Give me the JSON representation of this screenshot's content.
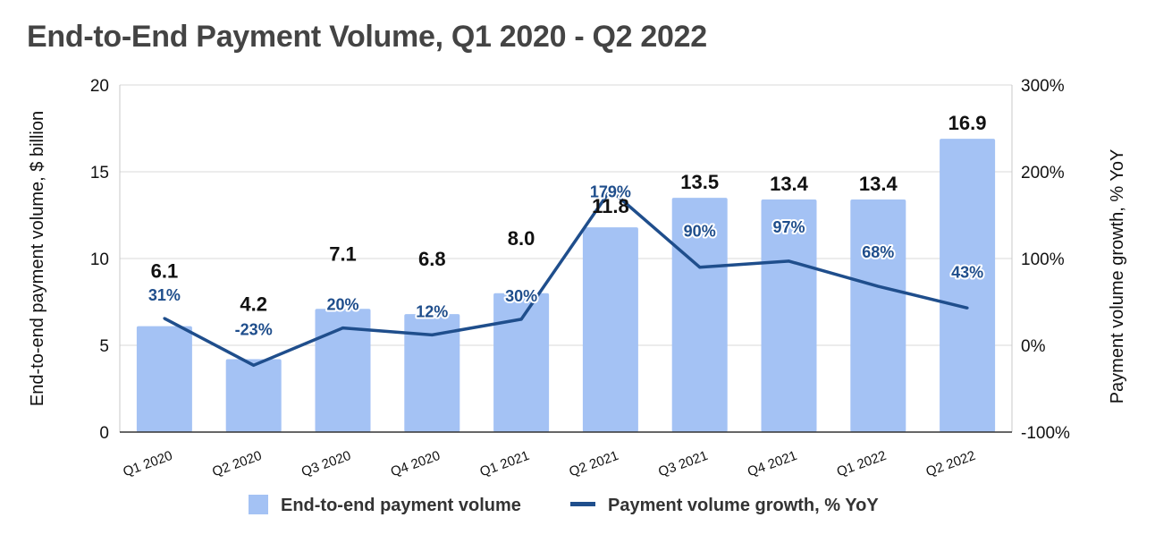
{
  "colors": {
    "bar": "#a4c2f4",
    "line": "#1f4e8c",
    "grid": "#d9d9d9",
    "title": "#444444"
  },
  "chart_data": {
    "type": "bar+line",
    "title": "End-to-End Payment Volume, Q1 2020 - Q2 2022",
    "categories": [
      "Q1 2020",
      "Q2 2020",
      "Q3 2020",
      "Q4 2020",
      "Q1 2021",
      "Q2 2021",
      "Q3 2021",
      "Q4 2021",
      "Q1 2022",
      "Q2 2022"
    ],
    "series": [
      {
        "name": "End-to-end payment volume",
        "type": "bar",
        "axis": "left",
        "values": [
          6.1,
          4.2,
          7.1,
          6.8,
          8.0,
          11.8,
          13.5,
          13.4,
          13.4,
          16.9
        ],
        "labels": [
          "6.1",
          "4.2",
          "7.1",
          "6.8",
          "8.0",
          "11.8",
          "13.5",
          "13.4",
          "13.4",
          "16.9"
        ]
      },
      {
        "name": "Payment volume growth, % YoY",
        "type": "line",
        "axis": "right",
        "values": [
          31,
          -23,
          20,
          12,
          30,
          179,
          90,
          97,
          68,
          43
        ],
        "labels": [
          "31%",
          "-23%",
          "20%",
          "12%",
          "30%",
          "179%",
          "90%",
          "97%",
          "68%",
          "43%"
        ]
      }
    ],
    "ylabel": "End-to-end payment volume, $ billion",
    "ylim": [
      0,
      20
    ],
    "yticks": [
      "0",
      "5",
      "10",
      "15",
      "20"
    ],
    "y2label": "Payment volume growth, % YoY",
    "y2lim": [
      -100,
      300
    ],
    "y2ticks": [
      "-100%",
      "0%",
      "100%",
      "200%",
      "300%"
    ],
    "legend": [
      "End-to-end payment volume",
      "Payment volume growth, % YoY"
    ],
    "legend_position": "bottom",
    "grid": true
  }
}
